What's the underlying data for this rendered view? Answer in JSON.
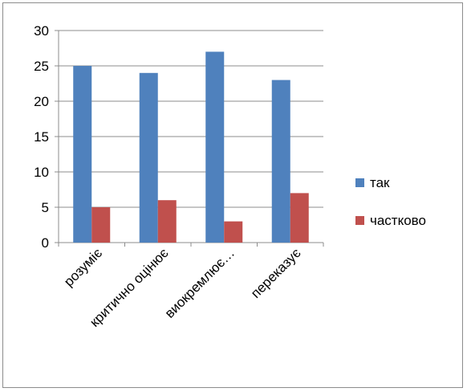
{
  "chart_data": {
    "type": "bar",
    "categories": [
      "розуміє",
      "критично оцінює",
      "виокремлює…",
      "переказує"
    ],
    "series": [
      {
        "name": "так",
        "values": [
          25,
          24,
          27,
          23
        ],
        "color": "#4f81bd"
      },
      {
        "name": "частково",
        "values": [
          5,
          6,
          3,
          7
        ],
        "color": "#c0504d"
      }
    ],
    "ylim": [
      0,
      30
    ],
    "yticks": [
      0,
      5,
      10,
      15,
      20,
      25,
      30
    ],
    "grid": true,
    "legend_position": "right",
    "title": "",
    "xlabel": "",
    "ylabel": ""
  }
}
